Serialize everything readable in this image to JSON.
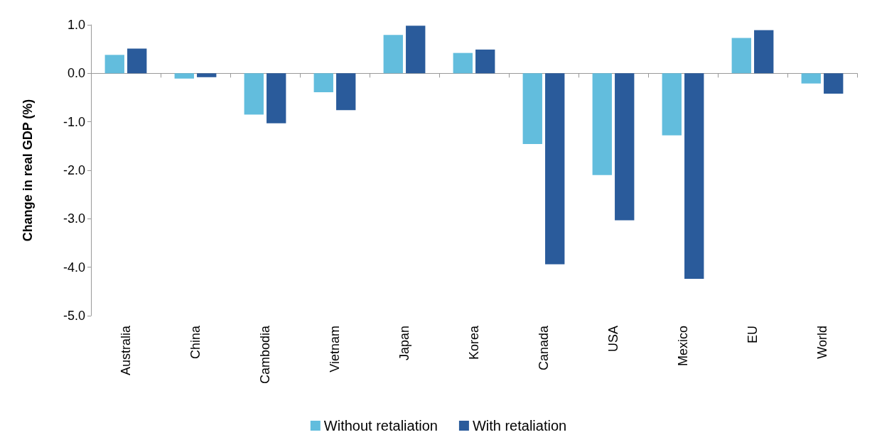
{
  "chart_data": {
    "type": "bar",
    "ylabel": "Change in real GDP (%)",
    "categories": [
      "Australia",
      "China",
      "Cambodia",
      "Vietnam",
      "Japan",
      "Korea",
      "Canada",
      "USA",
      "Mexico",
      "EU",
      "World"
    ],
    "series": [
      {
        "name": "Without retaliation",
        "color": "#62bddd",
        "values": [
          0.38,
          -0.11,
          -0.85,
          -0.39,
          0.79,
          0.42,
          -1.46,
          -2.1,
          -1.28,
          0.73,
          -0.21
        ]
      },
      {
        "name": "With retaliation",
        "color": "#2a5b9b",
        "values": [
          0.51,
          -0.08,
          -1.03,
          -0.76,
          0.98,
          0.49,
          -3.94,
          -3.03,
          -4.24,
          0.89,
          -0.42
        ]
      }
    ],
    "ylim": [
      -5,
      1
    ],
    "yticks": [
      {
        "value": -5,
        "label": "-5.0"
      },
      {
        "value": -4,
        "label": "-4.0"
      },
      {
        "value": -3,
        "label": "-3.0"
      },
      {
        "value": -2,
        "label": "-2.0"
      },
      {
        "value": -1,
        "label": "-1.0"
      },
      {
        "value": 0,
        "label": "0.0"
      },
      {
        "value": 1,
        "label": "1.0"
      }
    ],
    "legend": "bottom"
  }
}
